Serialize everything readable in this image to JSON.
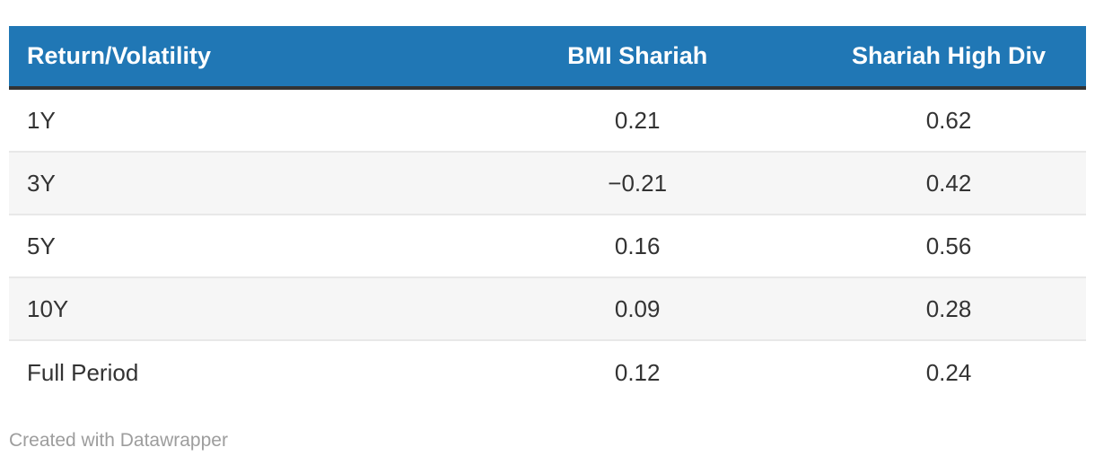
{
  "chart_data": {
    "type": "table",
    "title": "",
    "columns": [
      "Return/Volatility",
      "BMI Shariah",
      "Shariah High Div"
    ],
    "rows": [
      {
        "period": "1Y",
        "bmi_shariah": 0.21,
        "shariah_high_div": 0.62
      },
      {
        "period": "3Y",
        "bmi_shariah": -0.21,
        "shariah_high_div": 0.42
      },
      {
        "period": "5Y",
        "bmi_shariah": 0.16,
        "shariah_high_div": 0.56
      },
      {
        "period": "10Y",
        "bmi_shariah": 0.09,
        "shariah_high_div": 0.28
      },
      {
        "period": "Full Period",
        "bmi_shariah": 0.12,
        "shariah_high_div": 0.24
      }
    ],
    "layout_hints": {
      "header_style": "solid blue band with white bold text",
      "zebra_striping": true,
      "numeric_columns_alignment": "center",
      "label_column_alignment": "left"
    }
  },
  "table": {
    "header": {
      "col1": "Return/Volatility",
      "col2": "BMI Shariah",
      "col3": "Shariah High Div"
    },
    "rows": [
      {
        "period": "1Y",
        "bmi": "0.21",
        "shd": "0.62"
      },
      {
        "period": "3Y",
        "bmi": "−0.21",
        "shd": "0.42"
      },
      {
        "period": "5Y",
        "bmi": "0.16",
        "shd": "0.56"
      },
      {
        "period": "10Y",
        "bmi": "0.09",
        "shd": "0.28"
      },
      {
        "period": "Full Period",
        "bmi": "0.12",
        "shd": "0.24"
      }
    ]
  },
  "footer": {
    "credit": "Created with Datawrapper"
  },
  "colors": {
    "header_background": "#2077b5",
    "header_text": "#ffffff",
    "header_bottom_border": "#333333",
    "row_alternate_background": "#f6f6f6",
    "row_divider": "#e8e8e8",
    "body_text": "#333333",
    "credit_text": "#9d9d9d",
    "page_background": "#ffffff"
  }
}
